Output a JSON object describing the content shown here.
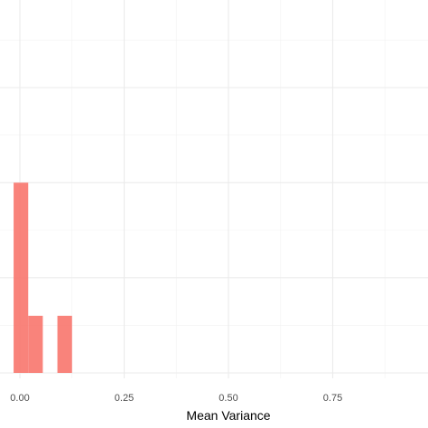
{
  "chart_data": {
    "type": "bar",
    "subtype": "histogram",
    "xlabel": "Mean Variance",
    "ylabel": "",
    "title": "",
    "xlim": [
      -0.04,
      1.0
    ],
    "ylim": [
      0,
      3.9
    ],
    "x_ticks": [
      0.0,
      0.25,
      0.5,
      0.75
    ],
    "x_tick_labels": [
      "0.00",
      "0.25",
      "0.50",
      "0.75"
    ],
    "y_major_ticks": [
      0,
      1,
      2,
      3
    ],
    "y_minor_ticks": [
      0.5,
      1.5,
      2.5,
      3.5
    ],
    "grid": true,
    "bar_color": "#f8766d",
    "bar_opacity": 0.9,
    "bars": [
      {
        "x0": -0.015,
        "x1": 0.02,
        "count": 2
      },
      {
        "x0": 0.02,
        "x1": 0.055,
        "count": 0.6
      },
      {
        "x0": 0.09,
        "x1": 0.125,
        "count": 0.6
      }
    ]
  }
}
